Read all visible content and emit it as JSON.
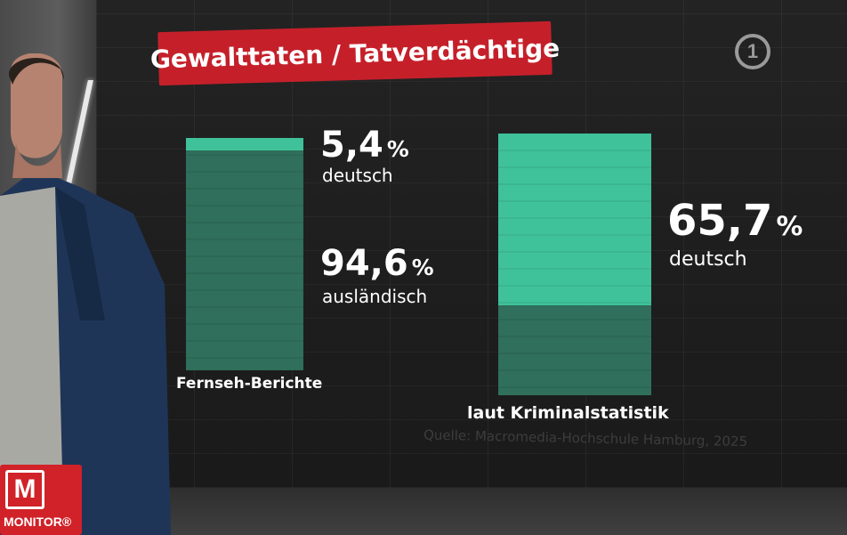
{
  "header": {
    "title": "Gewalttaten / Tatverdächtige"
  },
  "channel_logo": {
    "text": "1"
  },
  "chart_data": {
    "type": "bar",
    "stacked": true,
    "unit": "%",
    "categories": [
      "Fernseh-Berichte",
      "laut Kriminalstatistik"
    ],
    "series": [
      {
        "name": "deutsch",
        "values": [
          5.4,
          65.7
        ],
        "value_labels": [
          "5,4",
          "65,7"
        ],
        "color": "#3fc29a"
      },
      {
        "name": "ausländisch",
        "values": [
          94.6,
          34.3
        ],
        "value_labels": [
          "94,6",
          ""
        ],
        "color": "#2f6f5b"
      }
    ],
    "ylim": [
      0,
      100
    ]
  },
  "source": "Quelle: Macromedia-Hochschule Hamburg, 2025",
  "program": {
    "logo_letter": "M",
    "name": "MONITOR®"
  },
  "colors": {
    "title_bg": "#c5202a",
    "accent_light": "#3fc29a",
    "accent_dark": "#2f6f5b",
    "background": "#1b1b1b"
  }
}
